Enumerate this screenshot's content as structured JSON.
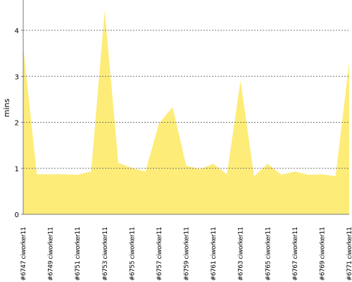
{
  "chart_data": {
    "type": "area",
    "y_label": "mins",
    "categories": [
      "#6747 ciworker11",
      null,
      "#6749 ciworker11",
      null,
      "#6751 ciworker11",
      null,
      "#6753 ciworker11",
      null,
      "#6755 ciworker11",
      null,
      "#6757 ciworker11",
      null,
      "#6759 ciworker11",
      null,
      "#6761 ciworker11",
      null,
      "#6763 ciworker11",
      null,
      "#6765 ciworker11",
      null,
      "#6767 ciworker11",
      null,
      "#6769 ciworker11",
      null,
      "#6771 ciworker11"
    ],
    "values": [
      3.66,
      0.87,
      0.87,
      0.87,
      0.86,
      0.93,
      4.44,
      1.12,
      1.01,
      0.93,
      1.98,
      2.33,
      1.06,
      0.98,
      1.1,
      0.87,
      2.91,
      0.83,
      1.1,
      0.86,
      0.93,
      0.86,
      0.87,
      0.83,
      3.31
    ],
    "color": "#fdec78",
    "ylim": [
      0,
      4.66
    ],
    "yticks": [
      0,
      1,
      2,
      3,
      4
    ],
    "grid": true
  }
}
